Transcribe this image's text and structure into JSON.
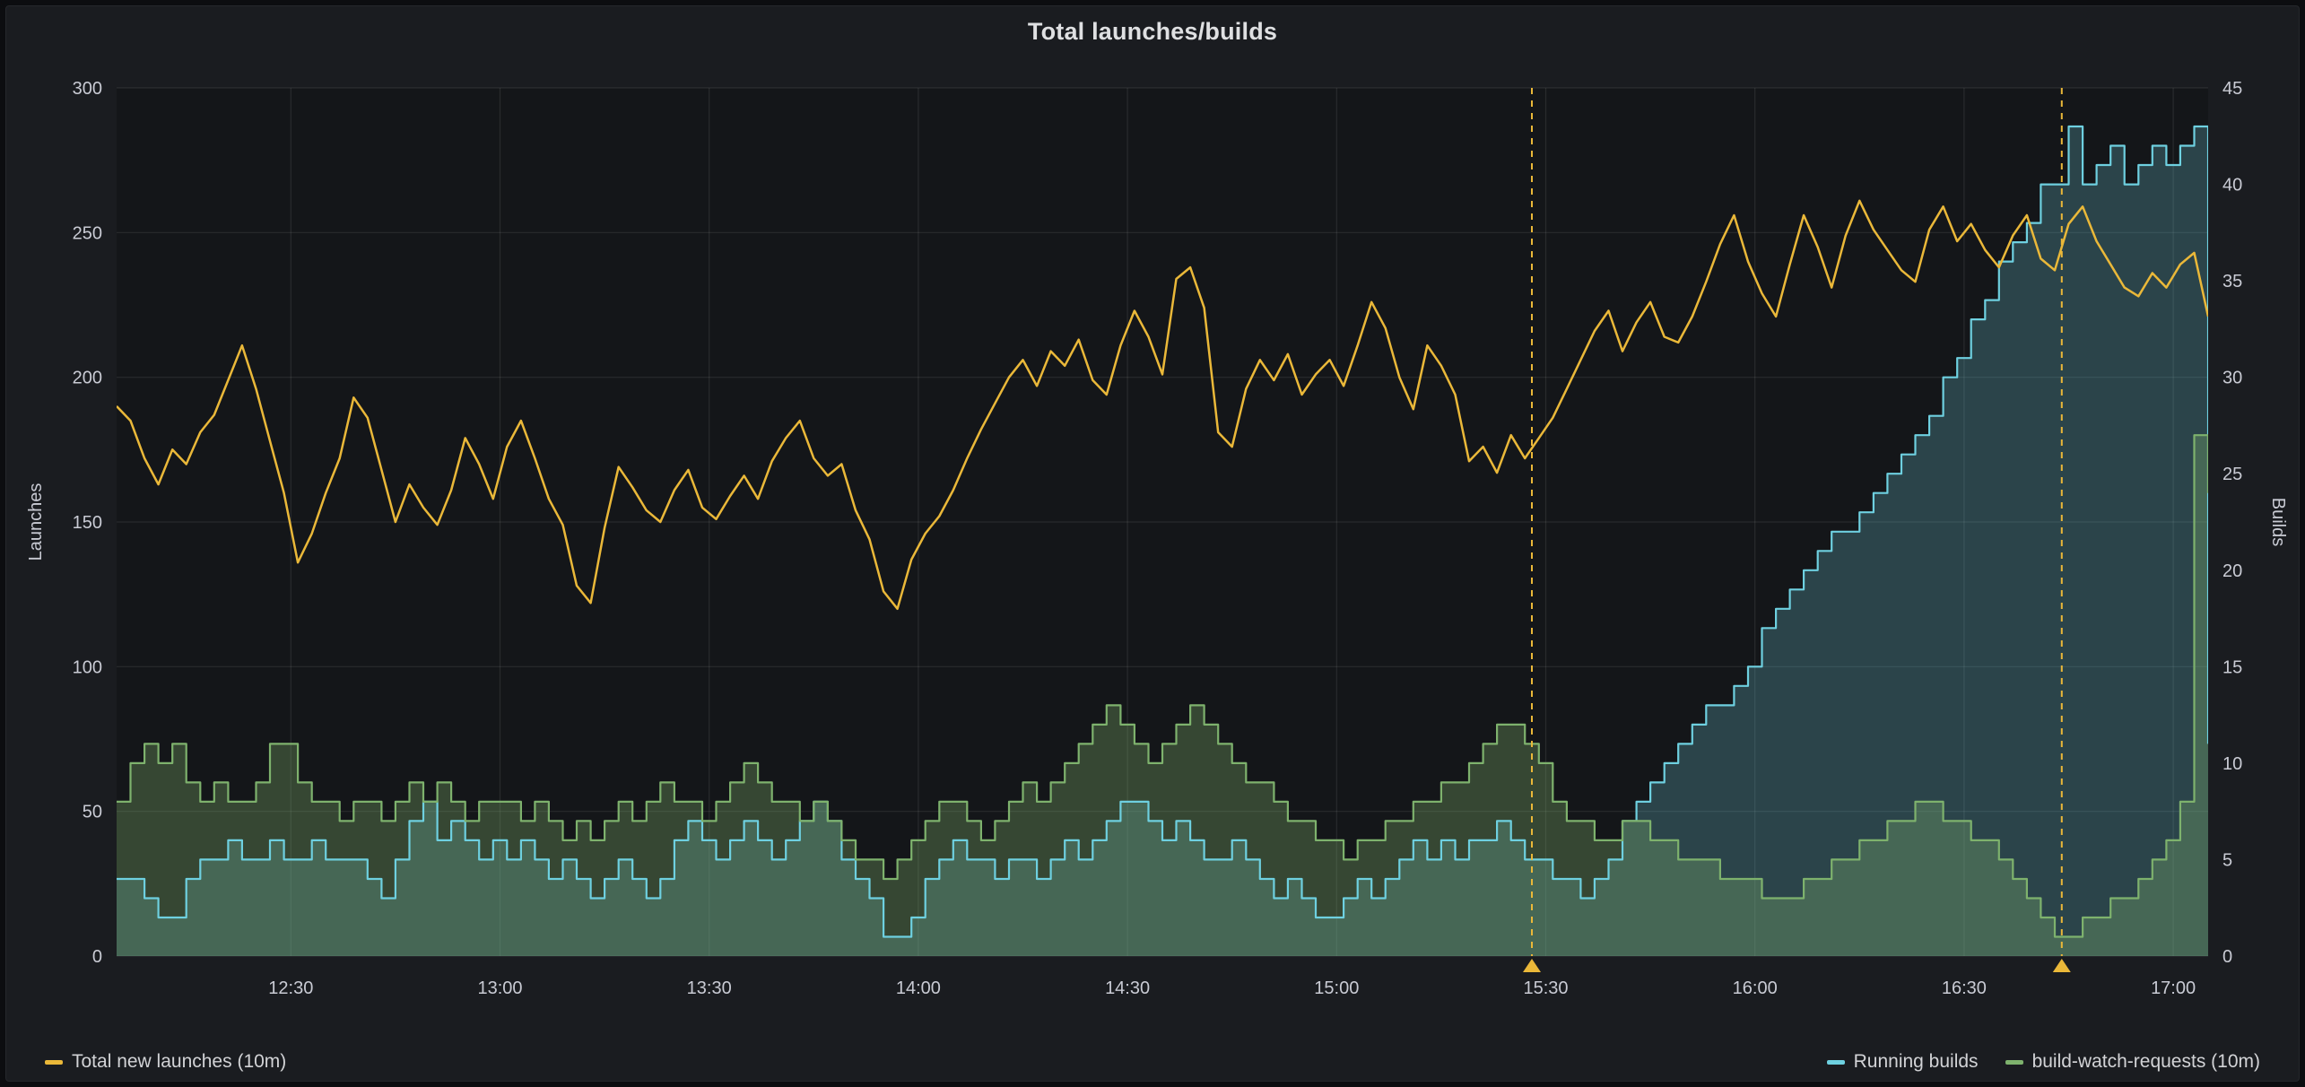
{
  "panel": {
    "title": "Total launches/builds"
  },
  "chart_data": {
    "type": "line",
    "title": "Total launches/builds",
    "legend_position": "bottom",
    "x_axis": {
      "start_min": 725,
      "end_min": 1025,
      "first_tick_min": 750,
      "tick_every_min": 30,
      "tick_labels": [
        "12:30",
        "13:00",
        "13:30",
        "14:00",
        "14:30",
        "15:00",
        "15:30",
        "16:00",
        "16:30",
        "17:00"
      ]
    },
    "left_axis": {
      "label": "Launches",
      "min": 0,
      "max": 300,
      "ticks": [
        0,
        50,
        100,
        150,
        200,
        250,
        300
      ]
    },
    "right_axis": {
      "label": "Builds",
      "min": 0,
      "max": 45,
      "ticks": [
        0,
        5,
        10,
        15,
        20,
        25,
        30,
        35,
        40,
        45
      ]
    },
    "sample_step_min": 2,
    "colors": {
      "page_bg": "#0c0d10",
      "panel_bg": "#1a1c20",
      "plot_bg": "#141619",
      "grid": "rgba(255,255,255,0.09)",
      "annotation": "#eab839",
      "text": "#c9cbd4"
    },
    "annotations": [
      {
        "time_min": 928
      },
      {
        "time_min": 1004
      }
    ],
    "series": [
      {
        "name": "Total new launches (10m)",
        "slug": "total-new-launches",
        "axis": "left",
        "style": "line",
        "color": "#eab839",
        "width": 2.5,
        "fill_opacity": 0,
        "values": [
          190,
          185,
          172,
          163,
          175,
          170,
          181,
          187,
          199,
          211,
          196,
          178,
          160,
          136,
          146,
          160,
          172,
          193,
          186,
          168,
          150,
          163,
          155,
          149,
          161,
          179,
          170,
          158,
          176,
          185,
          172,
          158,
          149,
          128,
          122,
          148,
          169,
          162,
          154,
          150,
          161,
          168,
          155,
          151,
          159,
          166,
          158,
          171,
          179,
          185,
          172,
          166,
          170,
          154,
          144,
          126,
          120,
          137,
          146,
          152,
          161,
          172,
          182,
          191,
          200,
          206,
          197,
          209,
          204,
          213,
          199,
          194,
          211,
          223,
          214,
          201,
          234,
          238,
          224,
          181,
          176,
          196,
          206,
          199,
          208,
          194,
          201,
          206,
          197,
          211,
          226,
          217,
          200,
          189,
          211,
          204,
          194,
          171,
          176,
          167,
          180,
          172,
          179,
          186,
          196,
          206,
          216,
          223,
          209,
          219,
          226,
          214,
          212,
          221,
          233,
          246,
          256,
          240,
          229,
          221,
          239,
          256,
          245,
          231,
          249,
          261,
          251,
          244,
          237,
          233,
          251,
          259,
          247,
          253,
          244,
          238,
          249,
          256,
          241,
          237,
          253,
          259,
          247,
          239,
          231,
          228,
          236,
          231,
          239,
          243,
          221
        ]
      },
      {
        "name": "Running builds",
        "slug": "running-builds",
        "axis": "right",
        "style": "step-area",
        "color": "#6ed0e0",
        "width": 2.2,
        "fill_opacity": 0.25,
        "values": [
          4,
          4,
          3,
          2,
          2,
          4,
          5,
          5,
          6,
          5,
          5,
          6,
          5,
          5,
          6,
          5,
          5,
          5,
          4,
          3,
          5,
          7,
          8,
          6,
          7,
          6,
          5,
          6,
          5,
          6,
          5,
          4,
          5,
          4,
          3,
          4,
          5,
          4,
          3,
          4,
          6,
          7,
          6,
          5,
          6,
          7,
          6,
          5,
          6,
          7,
          8,
          7,
          5,
          4,
          3,
          1,
          1,
          2,
          4,
          5,
          6,
          5,
          5,
          4,
          5,
          5,
          4,
          5,
          6,
          5,
          6,
          7,
          8,
          8,
          7,
          6,
          7,
          6,
          5,
          5,
          6,
          5,
          4,
          3,
          4,
          3,
          2,
          2,
          3,
          4,
          3,
          4,
          5,
          6,
          5,
          6,
          5,
          6,
          6,
          7,
          6,
          5,
          5,
          4,
          4,
          3,
          4,
          5,
          7,
          8,
          9,
          10,
          11,
          12,
          13,
          13,
          14,
          15,
          17,
          18,
          19,
          20,
          21,
          22,
          22,
          23,
          24,
          25,
          26,
          27,
          28,
          30,
          31,
          33,
          34,
          36,
          37,
          38,
          40,
          40,
          43,
          40,
          41,
          42,
          40,
          41,
          42,
          41,
          42,
          43,
          11
        ]
      },
      {
        "name": "build-watch-requests (10m)",
        "slug": "build-watch-requests",
        "axis": "right",
        "style": "step-area",
        "color": "#7eb26d",
        "width": 2.2,
        "fill_opacity": 0.32,
        "values": [
          8,
          10,
          11,
          10,
          11,
          9,
          8,
          9,
          8,
          8,
          9,
          11,
          11,
          9,
          8,
          8,
          7,
          8,
          8,
          7,
          8,
          9,
          8,
          9,
          8,
          7,
          8,
          8,
          8,
          7,
          8,
          7,
          6,
          7,
          6,
          7,
          8,
          7,
          8,
          9,
          8,
          8,
          7,
          8,
          9,
          10,
          9,
          8,
          8,
          7,
          8,
          7,
          6,
          5,
          5,
          4,
          5,
          6,
          7,
          8,
          8,
          7,
          6,
          7,
          8,
          9,
          8,
          9,
          10,
          11,
          12,
          13,
          12,
          11,
          10,
          11,
          12,
          13,
          12,
          11,
          10,
          9,
          9,
          8,
          7,
          7,
          6,
          6,
          5,
          6,
          6,
          7,
          7,
          8,
          8,
          9,
          9,
          10,
          11,
          12,
          12,
          11,
          10,
          8,
          7,
          7,
          6,
          6,
          7,
          7,
          6,
          6,
          5,
          5,
          5,
          4,
          4,
          4,
          3,
          3,
          3,
          4,
          4,
          5,
          5,
          6,
          6,
          7,
          7,
          8,
          8,
          7,
          7,
          6,
          6,
          5,
          4,
          3,
          2,
          1,
          1,
          2,
          2,
          3,
          3,
          4,
          5,
          6,
          8,
          27,
          24
        ]
      }
    ]
  }
}
